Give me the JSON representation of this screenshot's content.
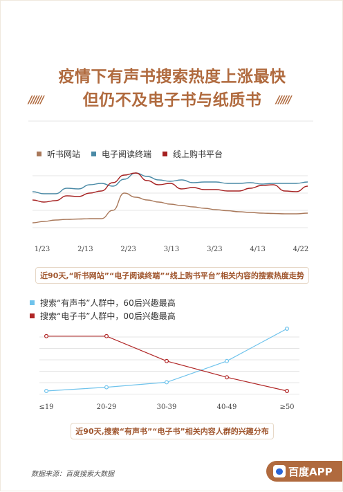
{
  "header": {
    "title_line1": "疫情下有声书搜索热度上涨最快",
    "title_line2": "但仍不及电子书与纸质书",
    "slashes": "//////"
  },
  "chart_data": [
    {
      "type": "line",
      "title": "",
      "xlabel": "",
      "ylabel": "",
      "x_tick_labels": [
        "1/23",
        "2/13",
        "2/23",
        "3/13",
        "3/23",
        "4/13",
        "4/22"
      ],
      "legend_position": "top-left",
      "grid": true,
      "series": [
        {
          "name": "听书网站",
          "color": "#a9785a",
          "values": [
            7,
            9,
            11,
            12,
            12.5,
            13,
            13,
            25,
            50,
            44,
            40,
            37,
            34,
            32,
            30,
            28,
            26,
            24.5,
            23,
            22,
            21,
            20.5,
            20,
            20,
            21
          ]
        },
        {
          "name": "电子阅读终端",
          "color": "#4a8aa6",
          "values": [
            52,
            49,
            49,
            57,
            56,
            62,
            64,
            60,
            70,
            79,
            74,
            69,
            67,
            69,
            65,
            66,
            66,
            64,
            64,
            65,
            63,
            64,
            64,
            64,
            66
          ]
        },
        {
          "name": "线上购书平台",
          "color": "#a52020",
          "values": [
            40,
            37,
            39,
            46,
            45,
            50,
            53,
            65,
            76,
            79,
            68,
            62,
            64,
            56,
            58,
            55,
            55,
            53,
            53,
            57,
            61,
            62,
            53,
            52,
            60
          ]
        }
      ],
      "caption": "近90天,“听书网站”“电子阅读终端”“线上购书平台”相关内容的搜索热度走势"
    },
    {
      "type": "line",
      "title": "",
      "xlabel": "",
      "ylabel": "",
      "categories": [
        "≤19",
        "20-29",
        "30-39",
        "40-49",
        "≥50"
      ],
      "legend_position": "top-left",
      "grid": true,
      "series": [
        {
          "name": "搜索“有声书”人群中，60后兴趣最高",
          "color": "#6fc3ec",
          "values": [
            0,
            6,
            14,
            48,
            100
          ]
        },
        {
          "name": "搜索“电子书”人群中，00后兴趣最高",
          "color": "#b02525",
          "values": [
            88,
            88,
            48,
            22,
            0
          ]
        }
      ],
      "caption": "近90天,搜索“有声书”“电子书”相关内容人群的兴趣分布"
    }
  ],
  "footer": {
    "source": "数据来源：百度搜索大数据",
    "brand": "百度APP"
  }
}
